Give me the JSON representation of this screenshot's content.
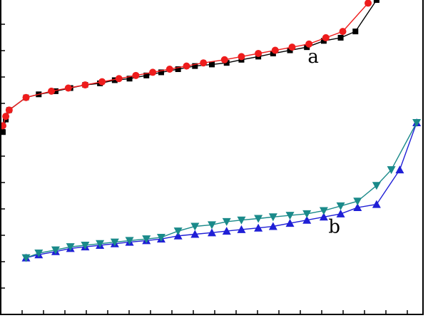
{
  "chart_data": {
    "type": "line",
    "title": "",
    "xlabel": "",
    "ylabel": "",
    "xlim": [
      0,
      1
    ],
    "ylim": [
      0,
      1
    ],
    "grid": false,
    "legend": "none",
    "annotations": [
      {
        "text": "a",
        "x": 0.74,
        "y": 0.8
      },
      {
        "text": "b",
        "x": 0.79,
        "y": 0.26
      }
    ],
    "series": [
      {
        "color": "#000000",
        "marker": "square",
        "x": [
          0.005,
          0.012,
          0.02,
          0.06,
          0.09,
          0.13,
          0.165,
          0.2,
          0.235,
          0.27,
          0.305,
          0.345,
          0.38,
          0.42,
          0.46,
          0.5,
          0.535,
          0.57,
          0.61,
          0.645,
          0.685,
          0.725,
          0.765,
          0.805,
          0.84,
          0.89
        ],
        "y": [
          0.58,
          0.62,
          0.65,
          0.69,
          0.7,
          0.71,
          0.72,
          0.73,
          0.735,
          0.745,
          0.75,
          0.76,
          0.77,
          0.78,
          0.79,
          0.795,
          0.8,
          0.81,
          0.82,
          0.83,
          0.84,
          0.85,
          0.87,
          0.88,
          0.9,
          1.0
        ]
      },
      {
        "color": "#ee1c1c",
        "marker": "circle",
        "x": [
          0.005,
          0.012,
          0.02,
          0.06,
          0.12,
          0.16,
          0.2,
          0.24,
          0.28,
          0.32,
          0.36,
          0.4,
          0.44,
          0.48,
          0.53,
          0.57,
          0.61,
          0.65,
          0.69,
          0.73,
          0.77,
          0.81,
          0.87
        ],
        "y": [
          0.6,
          0.63,
          0.65,
          0.69,
          0.71,
          0.72,
          0.73,
          0.74,
          0.75,
          0.76,
          0.77,
          0.78,
          0.79,
          0.8,
          0.81,
          0.82,
          0.83,
          0.84,
          0.85,
          0.86,
          0.88,
          0.9,
          0.99
        ]
      },
      {
        "color": "#1f1fd6",
        "marker": "triangle-up",
        "x": [
          0.06,
          0.09,
          0.13,
          0.165,
          0.2,
          0.235,
          0.27,
          0.305,
          0.345,
          0.38,
          0.42,
          0.46,
          0.5,
          0.535,
          0.57,
          0.61,
          0.645,
          0.685,
          0.725,
          0.765,
          0.805,
          0.845,
          0.89,
          0.945,
          0.985
        ],
        "y": [
          0.18,
          0.19,
          0.2,
          0.21,
          0.215,
          0.22,
          0.225,
          0.23,
          0.235,
          0.24,
          0.25,
          0.255,
          0.26,
          0.265,
          0.27,
          0.275,
          0.28,
          0.29,
          0.3,
          0.31,
          0.32,
          0.34,
          0.35,
          0.46,
          0.61
        ]
      },
      {
        "color": "#1a8a8a",
        "marker": "triangle-down",
        "x": [
          0.06,
          0.09,
          0.13,
          0.165,
          0.2,
          0.235,
          0.27,
          0.305,
          0.345,
          0.38,
          0.42,
          0.46,
          0.5,
          0.535,
          0.57,
          0.61,
          0.645,
          0.685,
          0.725,
          0.765,
          0.805,
          0.845,
          0.89,
          0.925,
          0.985
        ],
        "y": [
          0.18,
          0.195,
          0.205,
          0.215,
          0.22,
          0.225,
          0.23,
          0.235,
          0.24,
          0.245,
          0.265,
          0.28,
          0.285,
          0.295,
          0.3,
          0.305,
          0.31,
          0.315,
          0.32,
          0.33,
          0.345,
          0.36,
          0.41,
          0.46,
          0.61
        ]
      }
    ]
  }
}
